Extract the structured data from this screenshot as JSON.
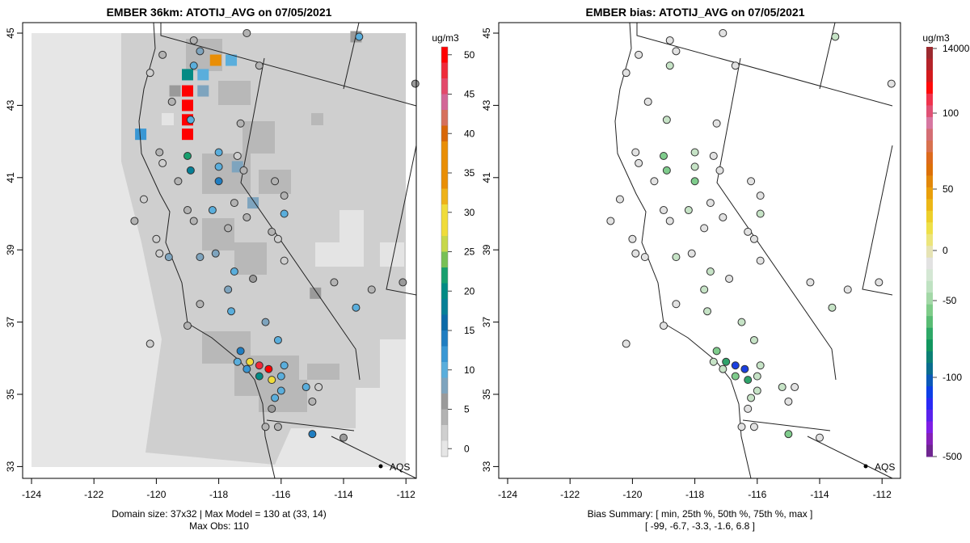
{
  "chart_data": [
    {
      "type": "heatmap",
      "title": "EMBER 36km: ATOTIJ_AVG on 07/05/2021",
      "x_ticks": [
        "-124",
        "-122",
        "-120",
        "-118",
        "-116",
        "-114",
        "-112"
      ],
      "y_ticks": [
        "33",
        "35",
        "37",
        "39",
        "41",
        "43",
        "45"
      ],
      "xlim": [
        -124.3,
        -111.7
      ],
      "ylim": [
        32.7,
        45.3
      ],
      "colorbar": {
        "unit": "ug/m3",
        "ticks": [
          "0",
          "5",
          "10",
          "15",
          "20",
          "25",
          "30",
          "35",
          "40",
          "45",
          "50"
        ],
        "range": [
          -1,
          51
        ]
      },
      "annotation": "AQS",
      "footer_line1": "Domain size: 37x32 | Max Model = 130 at (33, 14)",
      "footer_line2": "Max Obs: 110",
      "domain_size": "37x32",
      "max_model": 130,
      "max_model_cell": [
        33,
        14
      ],
      "max_obs": 110,
      "grid_cells_highlight": [
        {
          "lon": -119.0,
          "lat": 43.0,
          "value": 51
        },
        {
          "lon": -119.0,
          "lat": 42.6,
          "value": 51
        },
        {
          "lon": -119.0,
          "lat": 42.2,
          "value": 51
        },
        {
          "lon": -119.0,
          "lat": 43.4,
          "value": 51
        },
        {
          "lon": -119.0,
          "lat": 43.85,
          "value": 21
        },
        {
          "lon": -118.1,
          "lat": 44.25,
          "value": 38
        },
        {
          "lon": -117.6,
          "lat": 44.25,
          "value": 11
        },
        {
          "lon": -118.5,
          "lat": 43.85,
          "value": 10
        },
        {
          "lon": -120.5,
          "lat": 42.2,
          "value": 13
        },
        {
          "lon": -119.4,
          "lat": 43.4,
          "value": 7
        },
        {
          "lon": -118.5,
          "lat": 43.4,
          "value": 8
        },
        {
          "lon": -117.4,
          "lat": 41.3,
          "value": 8
        },
        {
          "lon": -116.9,
          "lat": 40.3,
          "value": 8
        },
        {
          "lon": -114.9,
          "lat": 37.8,
          "value": 7
        },
        {
          "lon": -113.6,
          "lat": 44.9,
          "value": 7
        }
      ],
      "stations": [
        {
          "lon": -117.1,
          "lat": 45.0,
          "v": 4
        },
        {
          "lon": -118.8,
          "lat": 44.8,
          "v": 4
        },
        {
          "lon": -118.6,
          "lat": 44.5,
          "v": 8
        },
        {
          "lon": -119.8,
          "lat": 44.4,
          "v": 4
        },
        {
          "lon": -120.2,
          "lat": 43.9,
          "v": 3
        },
        {
          "lon": -118.8,
          "lat": 44.1,
          "v": 11
        },
        {
          "lon": -116.7,
          "lat": 44.1,
          "v": 4
        },
        {
          "lon": -119.5,
          "lat": 43.1,
          "v": 4
        },
        {
          "lon": -118.9,
          "lat": 42.6,
          "v": 12
        },
        {
          "lon": -117.3,
          "lat": 42.5,
          "v": 4
        },
        {
          "lon": -119.9,
          "lat": 41.7,
          "v": 4
        },
        {
          "lon": -119.8,
          "lat": 41.4,
          "v": 2
        },
        {
          "lon": -119.0,
          "lat": 41.6,
          "v": 23
        },
        {
          "lon": -118.0,
          "lat": 41.7,
          "v": 11
        },
        {
          "lon": -117.4,
          "lat": 41.6,
          "v": 2
        },
        {
          "lon": -118.9,
          "lat": 41.2,
          "v": 19
        },
        {
          "lon": -118.0,
          "lat": 41.3,
          "v": 12
        },
        {
          "lon": -118.0,
          "lat": 40.9,
          "v": 15
        },
        {
          "lon": -119.3,
          "lat": 40.9,
          "v": 4
        },
        {
          "lon": -117.2,
          "lat": 41.2,
          "v": 4
        },
        {
          "lon": -116.2,
          "lat": 40.9,
          "v": 4
        },
        {
          "lon": -115.9,
          "lat": 40.5,
          "v": 4
        },
        {
          "lon": -117.5,
          "lat": 40.3,
          "v": 4
        },
        {
          "lon": -115.9,
          "lat": 40.0,
          "v": 10
        },
        {
          "lon": -120.4,
          "lat": 40.4,
          "v": 2
        },
        {
          "lon": -119.0,
          "lat": 40.1,
          "v": 4
        },
        {
          "lon": -118.2,
          "lat": 40.1,
          "v": 10
        },
        {
          "lon": -117.7,
          "lat": 39.6,
          "v": 4
        },
        {
          "lon": -117.1,
          "lat": 39.9,
          "v": 4
        },
        {
          "lon": -116.3,
          "lat": 39.5,
          "v": 4
        },
        {
          "lon": -118.8,
          "lat": 39.8,
          "v": 4
        },
        {
          "lon": -116.1,
          "lat": 39.3,
          "v": 2
        },
        {
          "lon": -120.7,
          "lat": 39.8,
          "v": 4
        },
        {
          "lon": -119.6,
          "lat": 38.8,
          "v": 8
        },
        {
          "lon": -118.6,
          "lat": 38.8,
          "v": 9
        },
        {
          "lon": -118.1,
          "lat": 38.9,
          "v": 8
        },
        {
          "lon": -117.5,
          "lat": 38.4,
          "v": 11
        },
        {
          "lon": -116.9,
          "lat": 38.2,
          "v": 7
        },
        {
          "lon": -117.7,
          "lat": 37.9,
          "v": 9
        },
        {
          "lon": -115.9,
          "lat": 38.7,
          "v": 2
        },
        {
          "lon": -114.3,
          "lat": 38.1,
          "v": 4
        },
        {
          "lon": -117.6,
          "lat": 37.3,
          "v": 10
        },
        {
          "lon": -116.5,
          "lat": 37.0,
          "v": 9
        },
        {
          "lon": -119.0,
          "lat": 36.9,
          "v": 4
        },
        {
          "lon": -116.1,
          "lat": 36.5,
          "v": 10
        },
        {
          "lon": -117.3,
          "lat": 36.2,
          "v": 15
        },
        {
          "lon": -117.4,
          "lat": 35.9,
          "v": 11
        },
        {
          "lon": -117.0,
          "lat": 35.9,
          "v": 30
        },
        {
          "lon": -116.7,
          "lat": 35.8,
          "v": 49
        },
        {
          "lon": -116.4,
          "lat": 35.7,
          "v": 51
        },
        {
          "lon": -117.1,
          "lat": 35.7,
          "v": 14
        },
        {
          "lon": -116.7,
          "lat": 35.5,
          "v": 22
        },
        {
          "lon": -116.3,
          "lat": 35.4,
          "v": 30
        },
        {
          "lon": -115.9,
          "lat": 35.8,
          "v": 10
        },
        {
          "lon": -116.0,
          "lat": 35.5,
          "v": 10
        },
        {
          "lon": -115.2,
          "lat": 35.2,
          "v": 12
        },
        {
          "lon": -114.8,
          "lat": 35.2,
          "v": 3
        },
        {
          "lon": -115.0,
          "lat": 34.8,
          "v": 4
        },
        {
          "lon": -116.2,
          "lat": 34.9,
          "v": 11
        },
        {
          "lon": -116.0,
          "lat": 35.1,
          "v": 12
        },
        {
          "lon": -116.3,
          "lat": 34.6,
          "v": 7
        },
        {
          "lon": -116.5,
          "lat": 34.1,
          "v": 4
        },
        {
          "lon": -116.1,
          "lat": 34.1,
          "v": 4
        },
        {
          "lon": -115.0,
          "lat": 33.9,
          "v": 15
        },
        {
          "lon": -114.0,
          "lat": 33.8,
          "v": 7
        },
        {
          "lon": -113.6,
          "lat": 37.4,
          "v": 10
        },
        {
          "lon": -113.1,
          "lat": 37.9,
          "v": 4
        },
        {
          "lon": -112.1,
          "lat": 38.1,
          "v": 7
        },
        {
          "lon": -113.5,
          "lat": 44.9,
          "v": 11
        },
        {
          "lon": -111.7,
          "lat": 43.6,
          "v": 7
        },
        {
          "lon": -120.0,
          "lat": 39.3,
          "v": 2
        },
        {
          "lon": -119.9,
          "lat": 38.9,
          "v": 2
        },
        {
          "lon": -118.6,
          "lat": 37.5,
          "v": 4
        },
        {
          "lon": -120.2,
          "lat": 36.4,
          "v": 2
        }
      ]
    },
    {
      "type": "scatter",
      "title": "EMBER bias: ATOTIJ_AVG on 07/05/2021",
      "x_ticks": [
        "-124",
        "-122",
        "-120",
        "-118",
        "-116",
        "-114",
        "-112"
      ],
      "y_ticks": [
        "33",
        "35",
        "37",
        "39",
        "41",
        "43",
        "45"
      ],
      "xlim": [
        -124.3,
        -111.7
      ],
      "ylim": [
        32.7,
        45.3
      ],
      "colorbar": {
        "unit": "ug/m3",
        "ticks": [
          "-500",
          "-100",
          "-50",
          "0",
          "50",
          "100",
          "14000"
        ]
      },
      "annotation": "AQS",
      "footer_line1": "Bias Summary: [ min, 25th %, 50th %, 75th %, max ]",
      "footer_line2": "[ -99,   -6.7,   -3.3,   -1.6,   6.8 ]",
      "bias_summary": {
        "min": -99,
        "p25": -6.7,
        "p50": -3.3,
        "p75": -1.6,
        "max": 6.8
      }
    }
  ]
}
